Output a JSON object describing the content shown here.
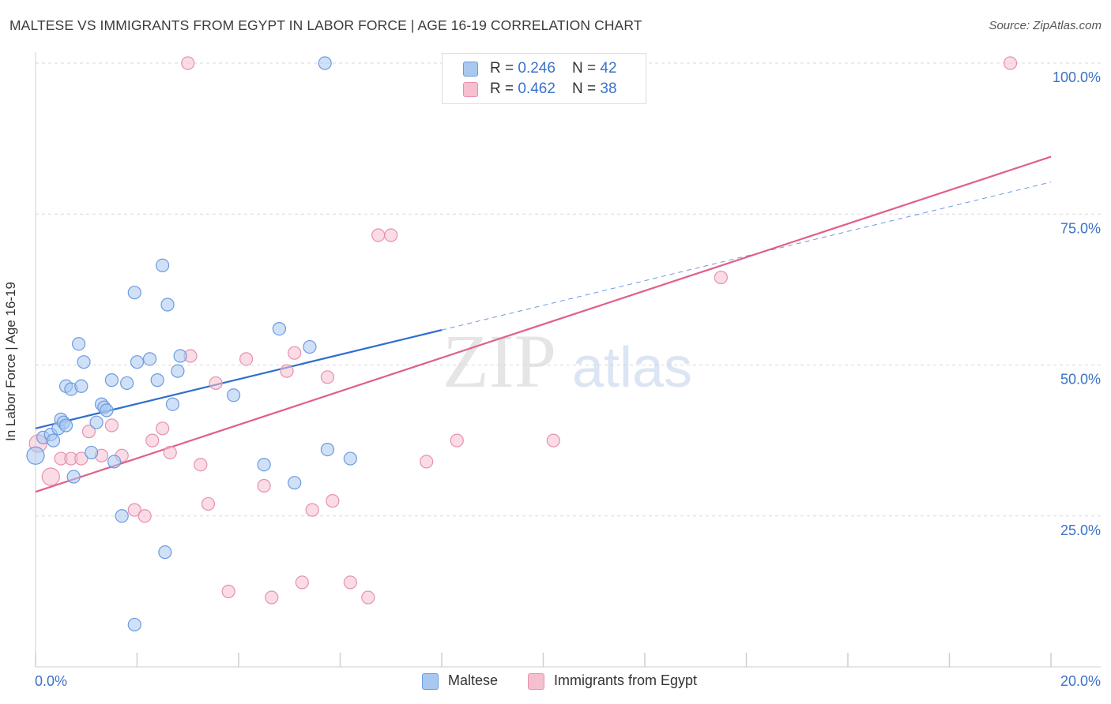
{
  "header": {
    "title": "MALTESE VS IMMIGRANTS FROM EGYPT IN LABOR FORCE | AGE 16-19 CORRELATION CHART",
    "source": "Source: ZipAtlas.com"
  },
  "watermark": {
    "zip": "ZIP",
    "atlas": "atlas"
  },
  "legend_top": [
    {
      "r_label": "R = ",
      "r_value": "0.246",
      "n_label": "N = ",
      "n_value": "42"
    },
    {
      "r_label": "R = ",
      "r_value": "0.462",
      "n_label": "N = ",
      "n_value": "38"
    }
  ],
  "legend_bottom": [
    {
      "label": "Maltese"
    },
    {
      "label": "Immigrants from Egypt"
    }
  ],
  "colors": {
    "maltese_fill": "#a9c8f0",
    "maltese_stroke": "#6b9be0",
    "maltese_line": "#2f6fd0",
    "egypt_fill": "#f6bfd0",
    "egypt_stroke": "#e890ad",
    "egypt_line": "#e0608a",
    "grid": "#d9d9d9",
    "axis_tick": "#3a72c8"
  },
  "chart_data": {
    "type": "scatter",
    "title": "MALTESE VS IMMIGRANTS FROM EGYPT IN LABOR FORCE | AGE 16-19 CORRELATION CHART",
    "ylabel": "In Labor Force | Age 16-19",
    "xlabel": "",
    "xlim": [
      0,
      20
    ],
    "ylim": [
      0,
      100
    ],
    "x_tick_labels": [
      "0.0%",
      "20.0%"
    ],
    "y_ticks": [
      25,
      50,
      75,
      100
    ],
    "y_tick_labels": [
      "25.0%",
      "50.0%",
      "75.0%",
      "100.0%"
    ],
    "grid": true,
    "legend_position": "top-center",
    "series": [
      {
        "name": "Maltese",
        "r": 0.246,
        "n": 42,
        "trend": {
          "x": [
            0,
            8
          ],
          "y": [
            39.5,
            55.8
          ],
          "dashed_extension_to_x": 20,
          "dashed_extension_y": 80.3
        },
        "points": [
          [
            0.0,
            35.0
          ],
          [
            0.15,
            38.0
          ],
          [
            0.3,
            38.5
          ],
          [
            0.35,
            37.5
          ],
          [
            0.45,
            39.5
          ],
          [
            0.5,
            41.0
          ],
          [
            0.55,
            40.5
          ],
          [
            0.6,
            40.0
          ],
          [
            0.6,
            46.5
          ],
          [
            0.7,
            46.0
          ],
          [
            0.75,
            31.5
          ],
          [
            0.85,
            53.5
          ],
          [
            0.9,
            46.5
          ],
          [
            0.95,
            50.5
          ],
          [
            1.1,
            35.5
          ],
          [
            1.2,
            40.5
          ],
          [
            1.3,
            43.5
          ],
          [
            1.35,
            43.0
          ],
          [
            1.4,
            42.5
          ],
          [
            1.5,
            47.5
          ],
          [
            1.55,
            34.0
          ],
          [
            1.7,
            25.0
          ],
          [
            1.8,
            47.0
          ],
          [
            1.95,
            62.0
          ],
          [
            2.0,
            50.5
          ],
          [
            2.25,
            51.0
          ],
          [
            2.4,
            47.5
          ],
          [
            2.5,
            66.5
          ],
          [
            2.55,
            19.0
          ],
          [
            2.6,
            60.0
          ],
          [
            2.7,
            43.5
          ],
          [
            2.8,
            49.0
          ],
          [
            2.85,
            51.5
          ],
          [
            1.95,
            7.0
          ],
          [
            3.9,
            45.0
          ],
          [
            4.5,
            33.5
          ],
          [
            4.8,
            56.0
          ],
          [
            5.1,
            30.5
          ],
          [
            5.4,
            53.0
          ],
          [
            5.75,
            36.0
          ],
          [
            6.2,
            34.5
          ],
          [
            5.7,
            100.0
          ]
        ]
      },
      {
        "name": "Immigrants from Egypt",
        "r": 0.462,
        "n": 38,
        "trend": {
          "x": [
            0,
            20
          ],
          "y": [
            29.0,
            84.5
          ]
        },
        "points": [
          [
            0.05,
            37.0
          ],
          [
            0.3,
            31.5
          ],
          [
            0.5,
            34.5
          ],
          [
            0.7,
            34.5
          ],
          [
            0.9,
            34.5
          ],
          [
            1.05,
            39.0
          ],
          [
            1.3,
            35.0
          ],
          [
            1.5,
            40.0
          ],
          [
            1.7,
            35.0
          ],
          [
            1.95,
            26.0
          ],
          [
            2.15,
            25.0
          ],
          [
            2.3,
            37.5
          ],
          [
            2.5,
            39.5
          ],
          [
            2.65,
            35.5
          ],
          [
            3.05,
            51.5
          ],
          [
            3.25,
            33.5
          ],
          [
            3.4,
            27.0
          ],
          [
            3.55,
            47.0
          ],
          [
            3.8,
            12.5
          ],
          [
            4.15,
            51.0
          ],
          [
            4.5,
            30.0
          ],
          [
            4.65,
            11.5
          ],
          [
            4.95,
            49.0
          ],
          [
            5.1,
            52.0
          ],
          [
            5.25,
            14.0
          ],
          [
            5.45,
            26.0
          ],
          [
            5.75,
            48.0
          ],
          [
            5.85,
            27.5
          ],
          [
            6.2,
            14.0
          ],
          [
            6.55,
            11.5
          ],
          [
            6.75,
            71.5
          ],
          [
            7.0,
            71.5
          ],
          [
            7.7,
            34.0
          ],
          [
            8.3,
            37.5
          ],
          [
            10.2,
            37.5
          ],
          [
            13.5,
            64.5
          ],
          [
            3.0,
            100.0
          ],
          [
            19.2,
            100.0
          ]
        ]
      }
    ]
  }
}
